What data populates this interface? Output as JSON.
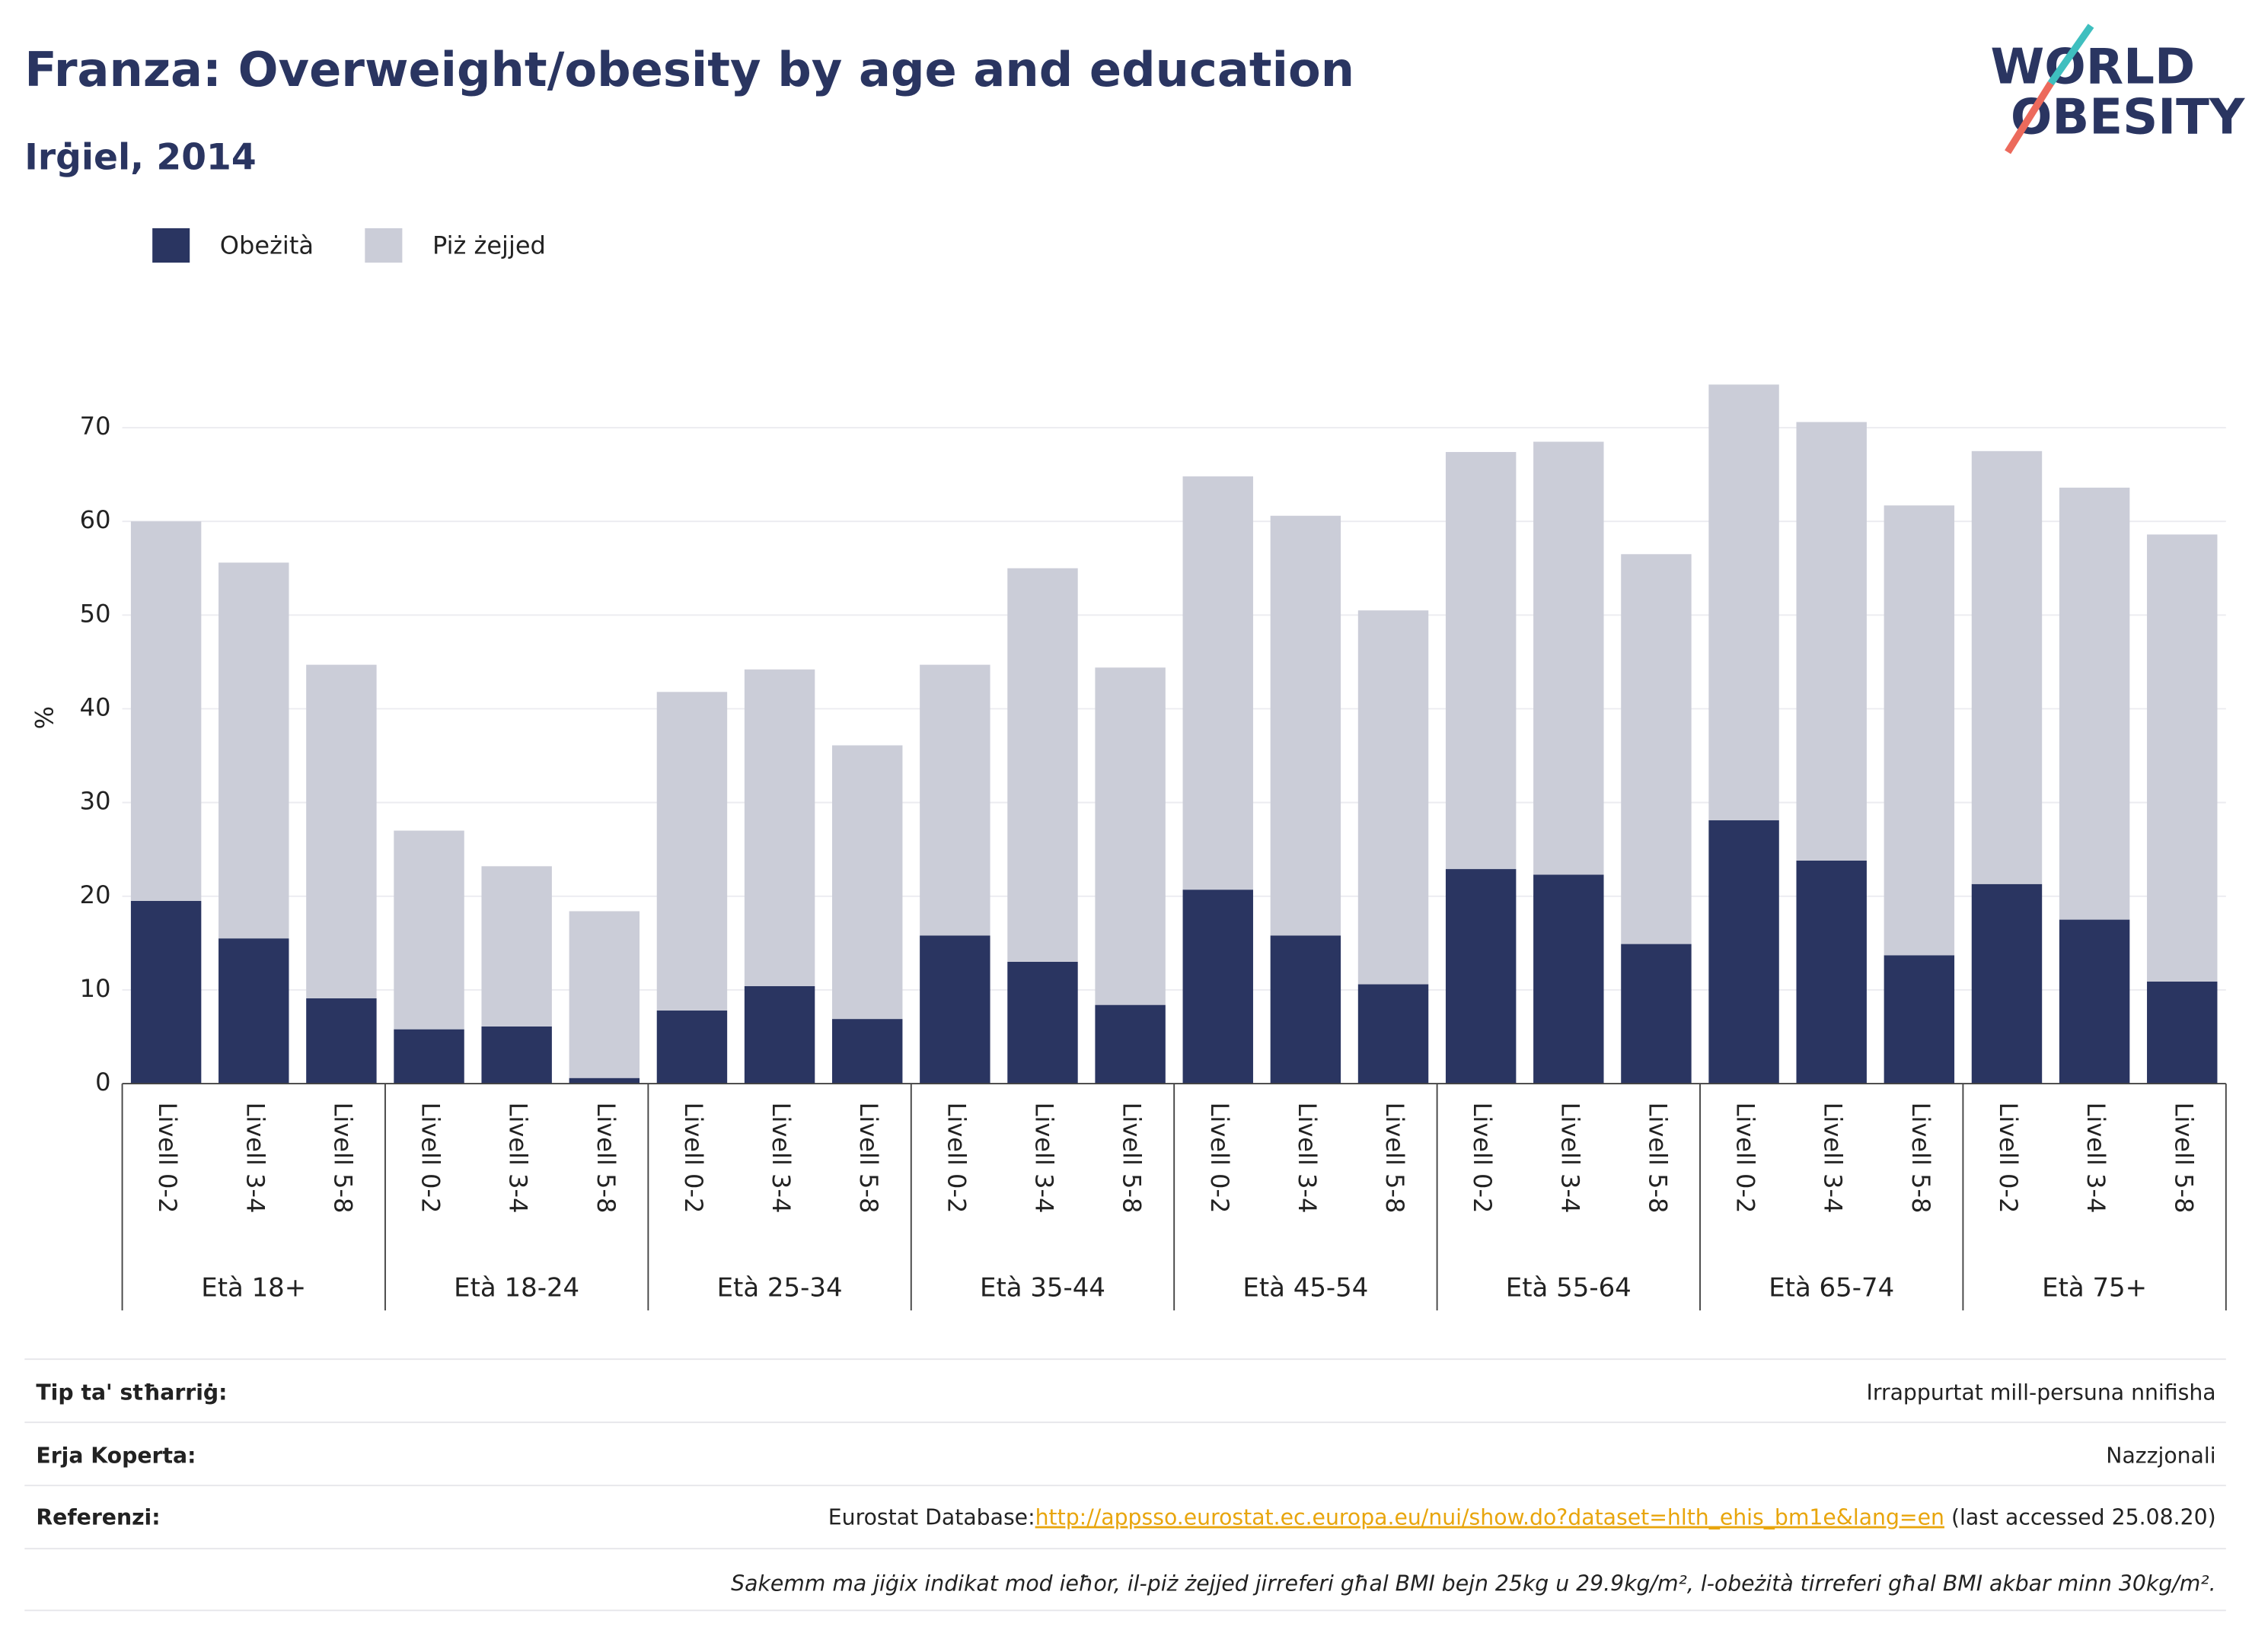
{
  "chart_data": {
    "type": "stacked_bar",
    "title": "Franza: Overweight/obesity by age and education",
    "subtitle": "Irġiel, 2014",
    "y_label": "%",
    "groups": [
      "Età 18+",
      "Età 18-24",
      "Età 25-34",
      "Età 35-44",
      "Età 45-54",
      "Età 55-64",
      "Età 65-74",
      "Età 75+"
    ],
    "categories": [
      "Livell 0-2",
      "Livell 3-4",
      "Livell 5-8",
      "Livell 0-2",
      "Livell 3-4",
      "Livell 5-8",
      "Livell 0-2",
      "Livell 3-4",
      "Livell 5-8",
      "Livell 0-2",
      "Livell 3-4",
      "Livell 5-8",
      "Livell 0-2",
      "Livell 3-4",
      "Livell 5-8",
      "Livell 0-2",
      "Livell 3-4",
      "Livell 5-8",
      "Livell 0-2",
      "Livell 3-4",
      "Livell 5-8",
      "Livell 0-2",
      "Livell 3-4",
      "Livell 5-8"
    ],
    "series": [
      {
        "name": "Obeżità",
        "color": "#2a3561",
        "values": [
          19.5,
          15.5,
          9.1,
          5.8,
          6.1,
          0.6,
          7.8,
          10.4,
          6.9,
          15.8,
          13.0,
          8.4,
          20.7,
          15.8,
          10.6,
          22.9,
          22.3,
          14.9,
          28.1,
          23.8,
          13.7,
          21.3,
          17.5,
          10.9
        ]
      },
      {
        "name": "Piż żejjed",
        "color": "#cbcdd8",
        "values": [
          40.5,
          40.1,
          35.6,
          21.2,
          17.1,
          17.8,
          34.0,
          33.8,
          29.2,
          28.9,
          42.0,
          36.0,
          44.1,
          44.8,
          39.9,
          44.5,
          46.2,
          41.6,
          46.5,
          46.8,
          48.0,
          46.2,
          46.1,
          47.7
        ]
      }
    ],
    "ylim": [
      0,
      77.5
    ],
    "yticks": [
      0,
      10,
      20,
      30,
      40,
      50,
      60,
      70
    ],
    "grid": true
  },
  "logo": [
    "WORLD",
    "OBESITY"
  ],
  "footer": [
    {
      "label": "Tip ta' stħarriġ:",
      "value": "Irrappurtat mill-persuna nnifisha"
    },
    {
      "label": "Erja Koperta:",
      "value": "Nazzjonali"
    },
    {
      "label": "Referenzi:",
      "prefix": "Eurostat Database:",
      "link": "http://appsso.eurostat.ec.europa.eu/nui/show.do?dataset=hlth_ehis_bm1e&lang=en",
      "suffix": " (last accessed 25.08.20)"
    }
  ],
  "note": "Sakemm ma jiġix indikat mod ieħor, il-piż żejjed jirreferi għal BMI bejn 25kg u 29.9kg/m², l-obeżità tirreferi għal BMI akbar minn 30kg/m²."
}
